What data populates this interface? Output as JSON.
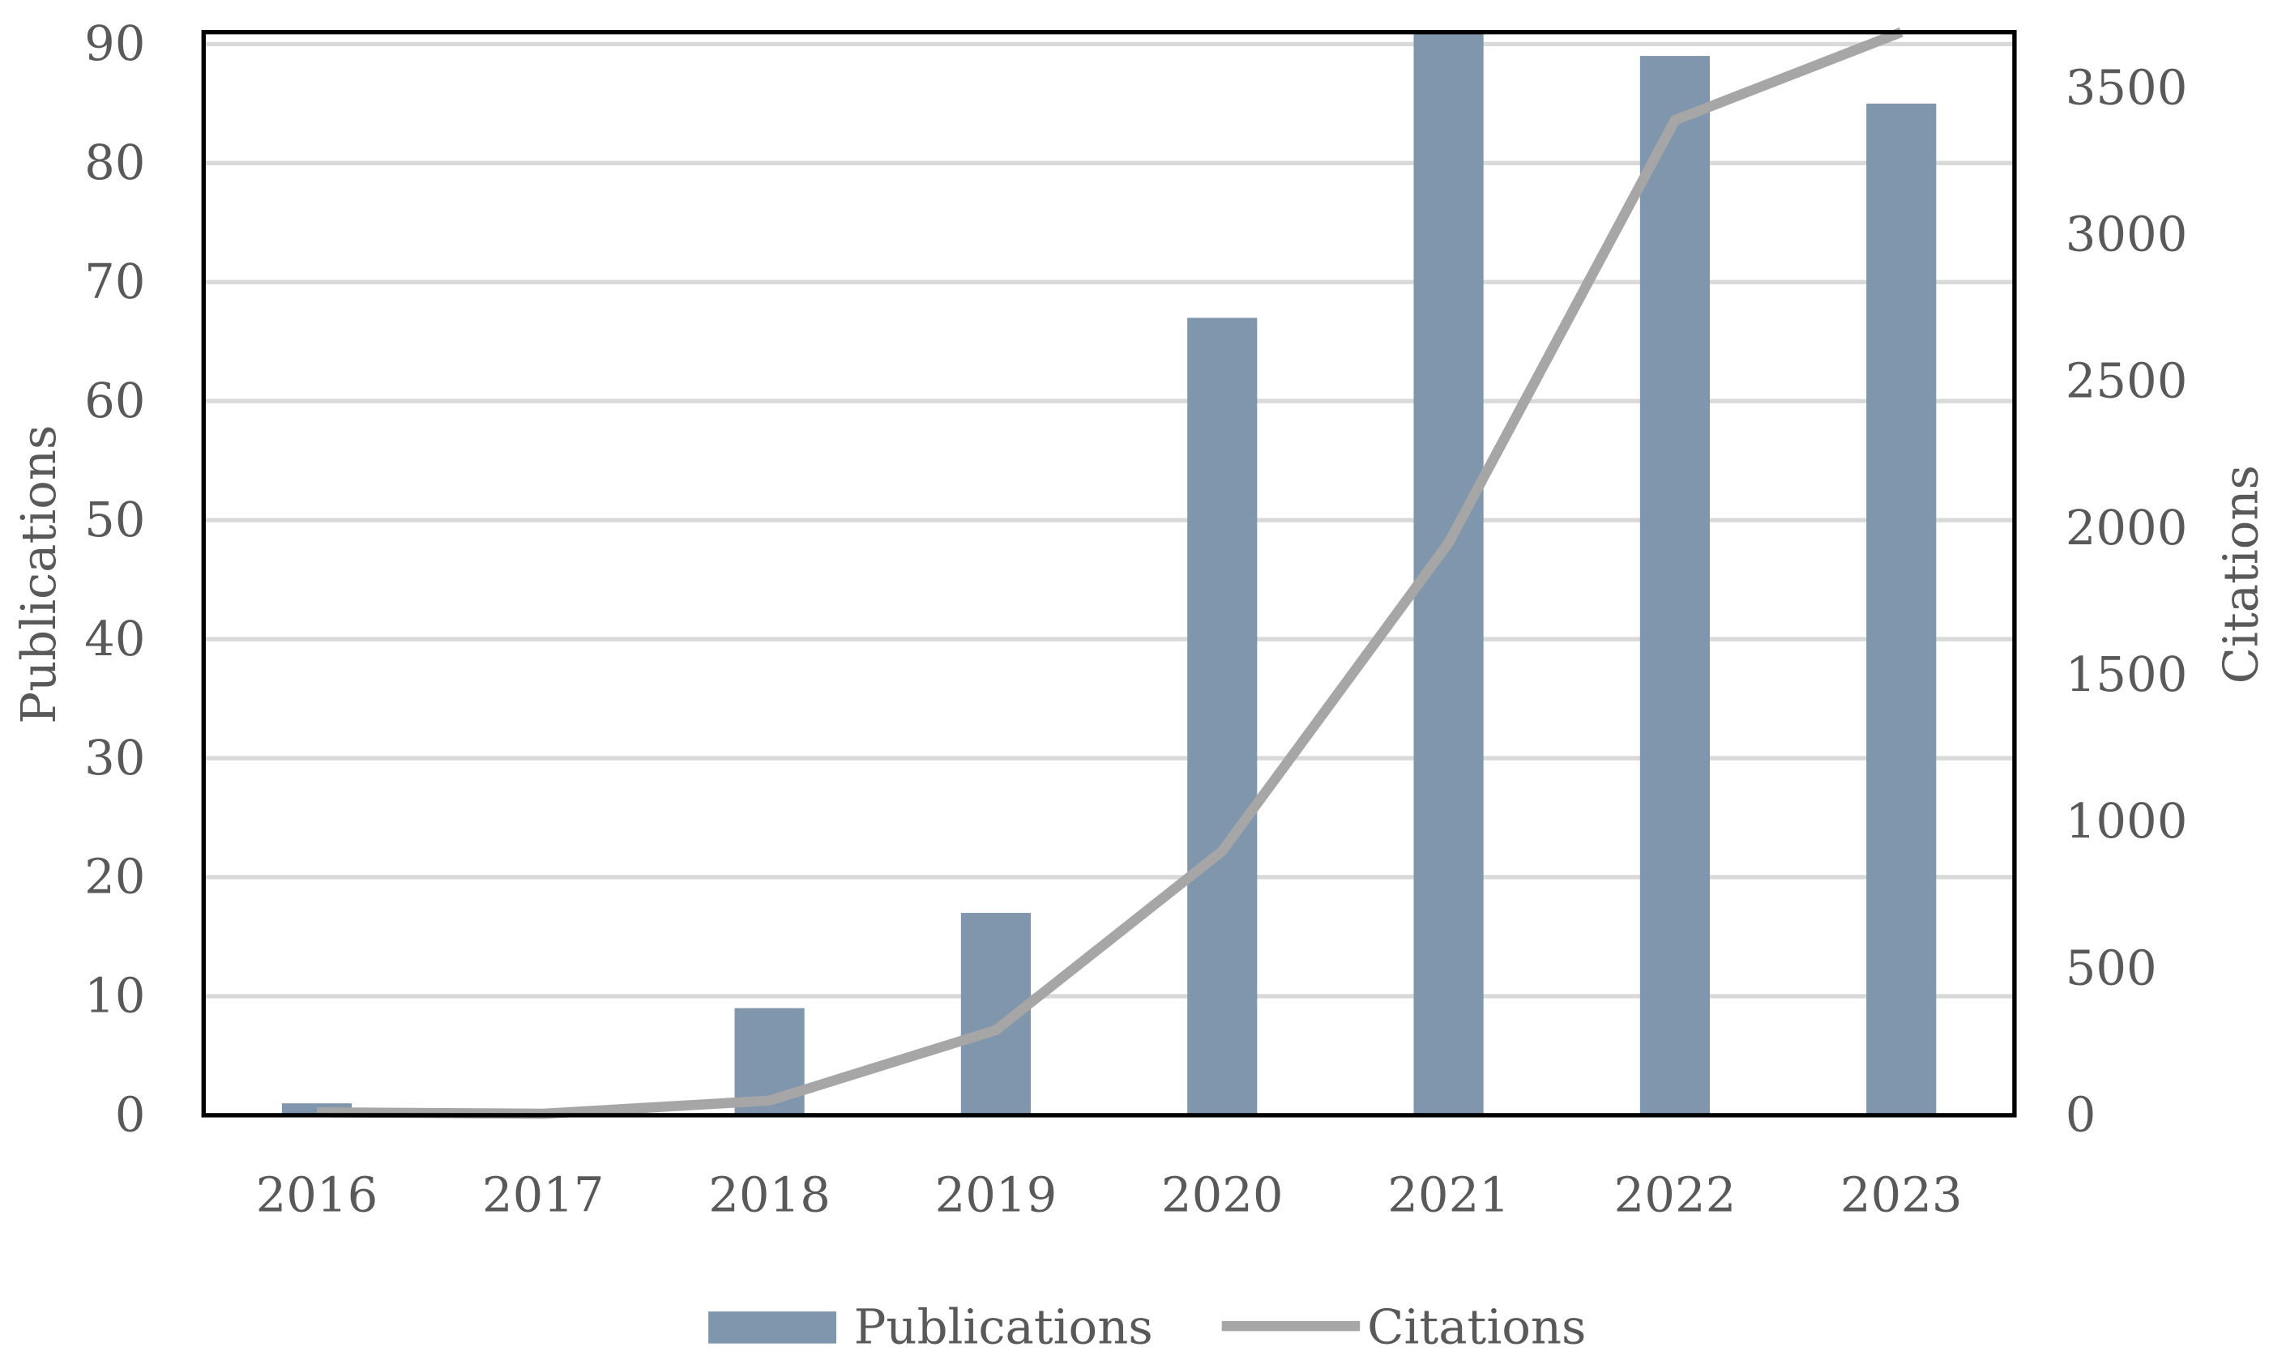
{
  "chart_data": {
    "type": "bar",
    "categories": [
      "2016",
      "2017",
      "2018",
      "2019",
      "2020",
      "2021",
      "2022",
      "2023"
    ],
    "series": [
      {
        "name": "Publications",
        "type": "bar",
        "axis": "left",
        "color": "#8096AC",
        "values": [
          1,
          0,
          9,
          17,
          67,
          91,
          89,
          85
        ]
      },
      {
        "name": "Citations",
        "type": "line",
        "axis": "right",
        "color": "#A6A6A6",
        "values": [
          10,
          5,
          50,
          290,
          900,
          1950,
          3390,
          3700
        ]
      }
    ],
    "ylabel": "Publications",
    "y2label": "Citations",
    "ylim": [
      0,
      91
    ],
    "y2lim": [
      0,
      3690
    ],
    "yticks": [
      "0",
      "10",
      "20",
      "30",
      "40",
      "50",
      "60",
      "70",
      "80",
      "90"
    ],
    "y2ticks": [
      "0",
      "500",
      "1000",
      "1500",
      "2000",
      "2500",
      "3000",
      "3500"
    ],
    "grid": true,
    "legend": "bottom",
    "legend_labels": [
      "Publications",
      "Citations"
    ]
  }
}
